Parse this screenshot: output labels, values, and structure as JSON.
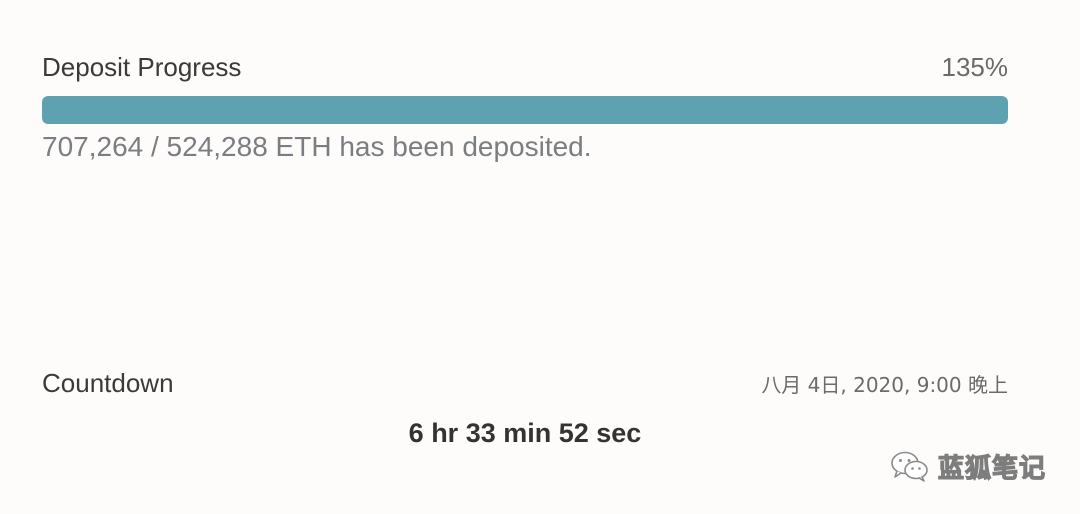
{
  "deposit": {
    "title": "Deposit Progress",
    "percent_label": "135%",
    "progress_fraction": 1.0,
    "status_text": "707,264 / 524,288 ETH has been deposited."
  },
  "countdown": {
    "title": "Countdown",
    "date": "八月 4日, 2020, 9:00 晚上",
    "timer": "6 hr 33 min 52 sec"
  },
  "watermark": {
    "text": "蓝狐笔记"
  },
  "colors": {
    "progress_fill": "#5ea1b1",
    "background": "#fdfcfa"
  }
}
